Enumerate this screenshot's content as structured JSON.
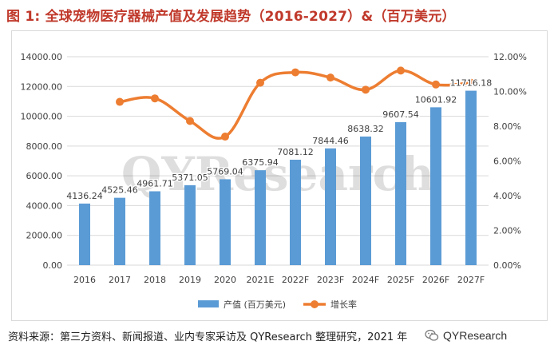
{
  "header": {
    "fig_label": "图 1:",
    "title": "全球宠物医疗器械产值及发展趋势（2016-2027）&（百万美元）"
  },
  "footer": {
    "source": "资料来源：第三方资料、新闻报道、业内专家采访及 QYResearch 整理研究，2021 年",
    "brand": "QYResearch"
  },
  "watermark": "QYResearch",
  "colors": {
    "bar": "#5b9bd5",
    "line": "#ed7d31",
    "grid": "#d9d9d9",
    "title": "#c0392b"
  },
  "chart_data": {
    "type": "bar",
    "title": "全球宠物医疗器械产值及发展趋势（2016-2027）&（百万美元）",
    "categories": [
      "2016",
      "2017",
      "2018",
      "2019",
      "2020",
      "2021E",
      "2022F",
      "2023F",
      "2024F",
      "2025F",
      "2026F",
      "2027F"
    ],
    "series": [
      {
        "name": "产值 (百万美元)",
        "type": "bar",
        "axis": "left",
        "values": [
          4136.24,
          4525.46,
          4961.71,
          5371.05,
          5769.04,
          6375.94,
          7081.12,
          7844.46,
          8638.32,
          9607.54,
          10601.92,
          11716.18
        ],
        "labels": [
          "4136.24",
          "4525.46",
          "4961.71",
          "5371.05",
          "5769.04",
          "6375.94",
          "7081.12",
          "7844.46",
          "8638.32",
          "9607.54",
          "10601.92",
          "11716.18"
        ]
      },
      {
        "name": "增长率",
        "type": "line",
        "axis": "right",
        "values": [
          null,
          9.4,
          9.6,
          8.3,
          7.4,
          10.5,
          11.1,
          10.8,
          10.1,
          11.2,
          10.4,
          10.5
        ]
      }
    ],
    "y_left": {
      "min": 0,
      "max": 14000,
      "step": 2000,
      "tick_labels": [
        "0.00",
        "2000.00",
        "4000.00",
        "6000.00",
        "8000.00",
        "10000.00",
        "12000.00",
        "14000.00"
      ]
    },
    "y_right": {
      "min": 0,
      "max": 12,
      "step": 2,
      "tick_labels": [
        "0.00%",
        "2.00%",
        "4.00%",
        "6.00%",
        "8.00%",
        "10.00%",
        "12.00%"
      ]
    },
    "legend": {
      "position": "bottom",
      "items": [
        "产值 (百万美元)",
        "增长率"
      ]
    },
    "grid": true
  }
}
